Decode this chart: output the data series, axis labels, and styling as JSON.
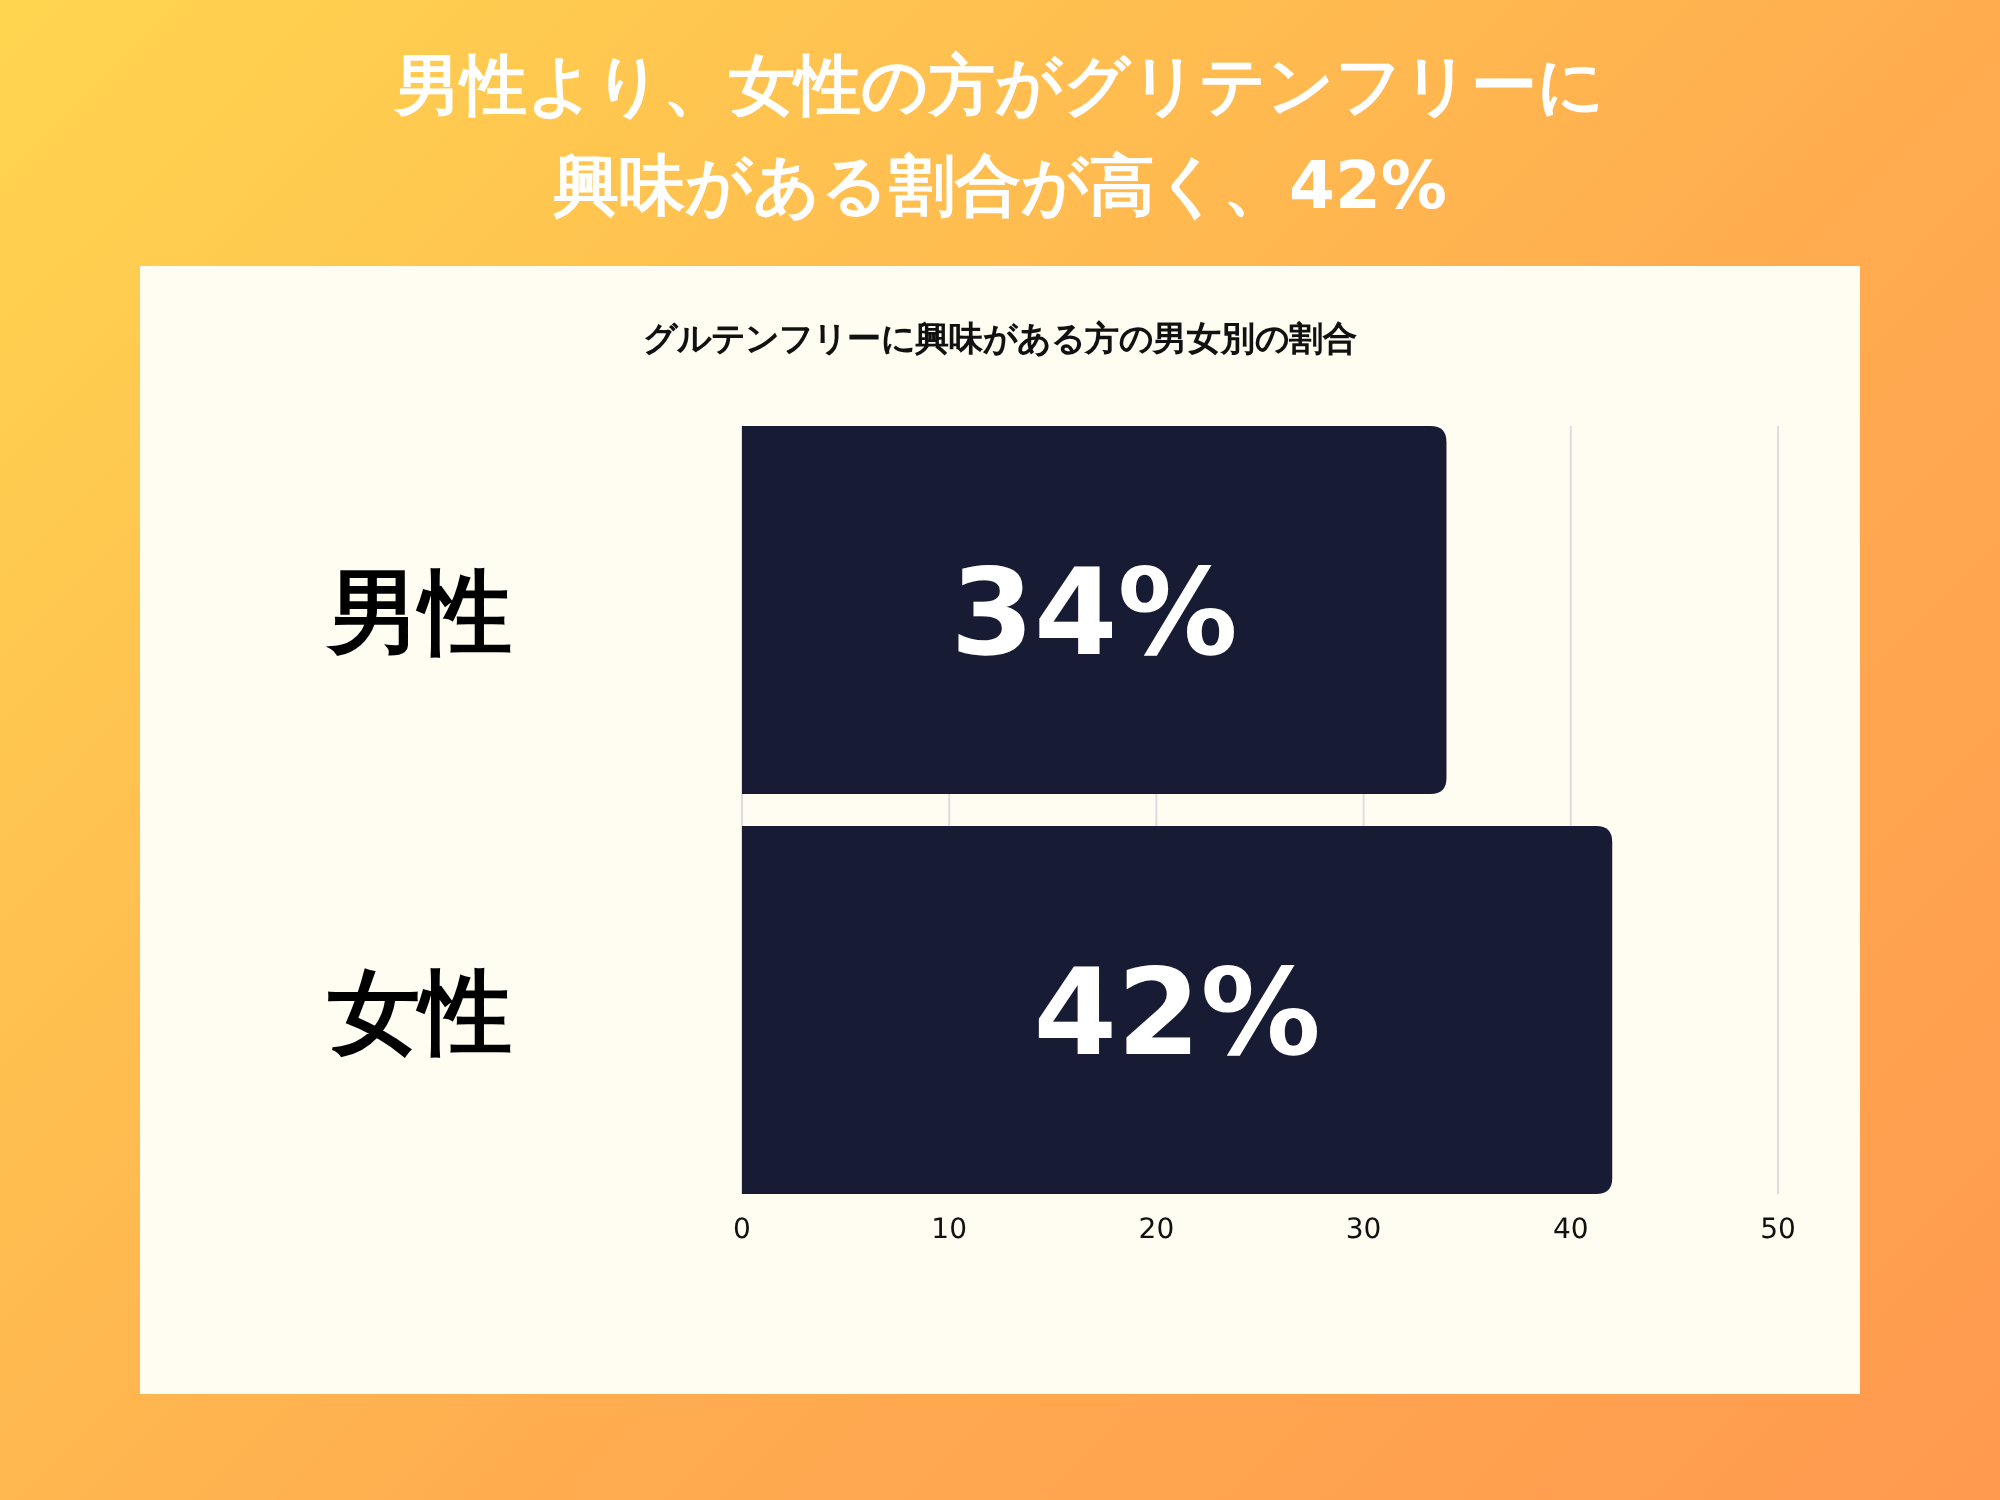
{
  "chart_data": {
    "type": "bar",
    "orientation": "horizontal",
    "title": "男性より、女性の方がグリテンフリーに興味がある割合が高く、42%",
    "subtitle": "グルテンフリーに興味がある方の男女別の割合",
    "categories": [
      "男性",
      "女性"
    ],
    "values": [
      34,
      42
    ],
    "value_labels": [
      "34%",
      "42%"
    ],
    "color": "#181b34",
    "xlim": [
      0,
      50
    ],
    "xticks": [
      0,
      10,
      20,
      30,
      40,
      50
    ],
    "grid": "x"
  }
}
